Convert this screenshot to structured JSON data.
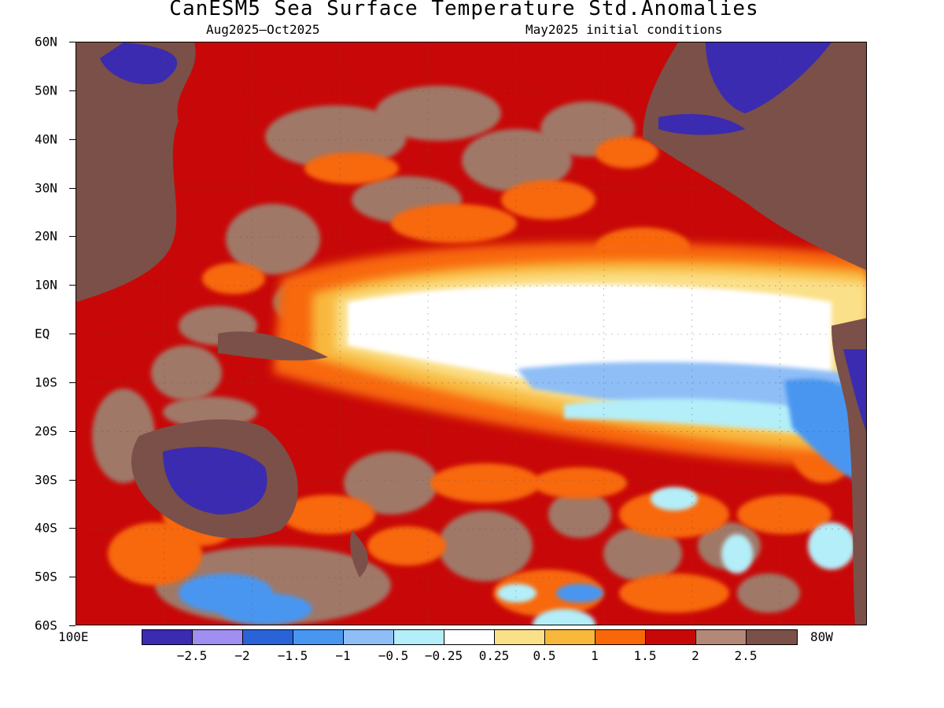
{
  "title": "CanESM5 Sea Surface Temperature Std.Anomalies",
  "subtitle_left": "Aug2025–Oct2025",
  "subtitle_right": "May2025 initial conditions",
  "lat_labels": [
    "60N",
    "50N",
    "40N",
    "30N",
    "20N",
    "10N",
    "EQ",
    "10S",
    "20S",
    "30S",
    "40S",
    "50S",
    "60S"
  ],
  "lon_left_label": "100E",
  "lon_right_label": "80W",
  "colorbar": {
    "colors": [
      "#3b2bb0",
      "#a08ef0",
      "#2a63d8",
      "#4896f0",
      "#8fbef6",
      "#b4eef8",
      "#ffffff",
      "#fbe08a",
      "#f8b83c",
      "#f86808",
      "#c80808",
      "#b48878",
      "#7a5048"
    ],
    "labels": [
      "−2.5",
      "−2",
      "−1.5",
      "−1",
      "−0.5",
      "−0.25",
      "0.25",
      "0.5",
      "1",
      "1.5",
      "2",
      "2.5"
    ]
  },
  "map_colors": {
    "land": "#7a5048",
    "ocean_base": "#c80808",
    "brown_high": "#a07868",
    "orange": "#f86808",
    "light_orange": "#f8b83c",
    "yellow": "#fbe08a",
    "white": "#ffffff",
    "light_blue": "#8fbef6",
    "pale_blue": "#b4eef8",
    "blue": "#4896f0",
    "deep_blue": "#3b2bb0"
  }
}
